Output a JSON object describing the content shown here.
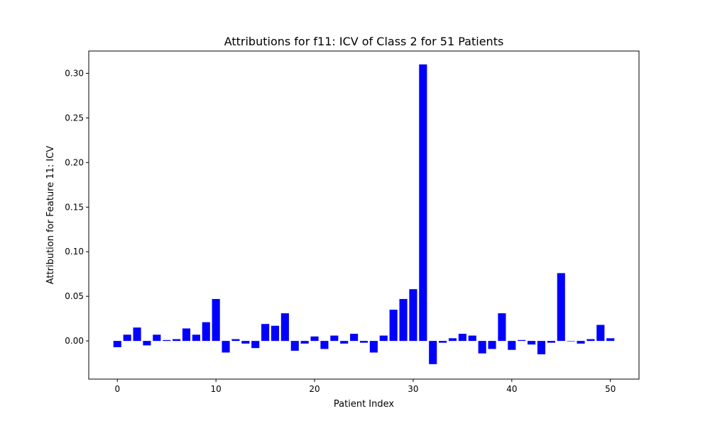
{
  "chart_data": {
    "type": "bar",
    "title": "Attributions for f11: ICV of Class 2 for 51 Patients",
    "xlabel": "Patient Index",
    "ylabel": "Attribution for Feature 11: ICV",
    "x": [
      0,
      1,
      2,
      3,
      4,
      5,
      6,
      7,
      8,
      9,
      10,
      11,
      12,
      13,
      14,
      15,
      16,
      17,
      18,
      19,
      20,
      21,
      22,
      23,
      24,
      25,
      26,
      27,
      28,
      29,
      30,
      31,
      32,
      33,
      34,
      35,
      36,
      37,
      38,
      39,
      40,
      41,
      42,
      43,
      44,
      45,
      46,
      47,
      48,
      49,
      50
    ],
    "values": [
      -0.007,
      0.007,
      0.015,
      -0.005,
      0.007,
      0.001,
      0.002,
      0.014,
      0.007,
      0.021,
      0.047,
      -0.013,
      0.002,
      -0.003,
      -0.008,
      0.019,
      0.017,
      0.031,
      -0.011,
      -0.003,
      0.005,
      -0.009,
      0.006,
      -0.003,
      0.008,
      -0.002,
      -0.013,
      0.006,
      0.035,
      0.047,
      0.058,
      0.31,
      -0.026,
      -0.002,
      0.003,
      0.008,
      0.006,
      -0.014,
      -0.009,
      0.031,
      -0.01,
      0.001,
      -0.004,
      -0.015,
      -0.002,
      0.076,
      0.0,
      -0.003,
      0.002,
      0.018,
      0.003
    ],
    "bar_color": "#0000ff",
    "xlim": [
      -2.9,
      52.9
    ],
    "ylim": [
      -0.0428,
      0.325
    ],
    "xticks": [
      0,
      10,
      20,
      30,
      40,
      50
    ],
    "yticks": [
      0.0,
      0.05,
      0.1,
      0.15,
      0.2,
      0.25,
      0.3
    ],
    "xtick_labels": [
      "0",
      "10",
      "20",
      "30",
      "40",
      "50"
    ],
    "ytick_labels": [
      "0.00",
      "0.05",
      "0.10",
      "0.15",
      "0.20",
      "0.25",
      "0.30"
    ],
    "grid": false,
    "legend": false
  }
}
